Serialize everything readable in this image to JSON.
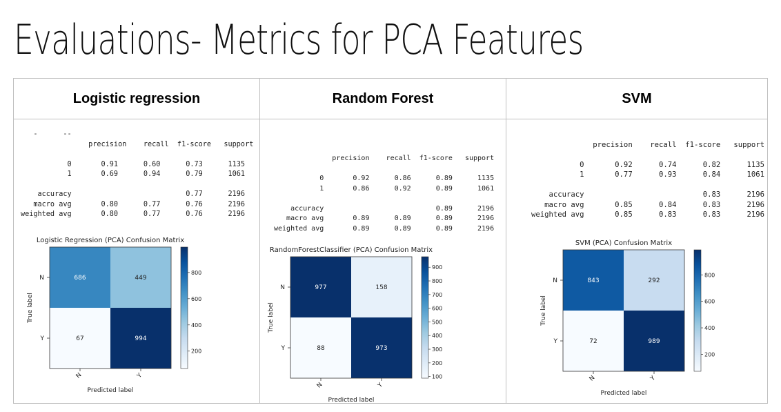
{
  "slide": {
    "title": "Evaluations- Metrics for PCA Features"
  },
  "columns": [
    {
      "header": "Logistic regression",
      "report_lines": [
        "   -      --",
        "                precision    recall  f1-score   support",
        "",
        "           0       0.91      0.60      0.73      1135",
        "           1       0.69      0.94      0.79      1061",
        "",
        "    accuracy                           0.77      2196",
        "   macro avg       0.80      0.77      0.76      2196",
        "weighted avg       0.80      0.77      0.76      2196"
      ],
      "matrix": {
        "title": "Logistic Regression (PCA) Confusion Matrix",
        "xlabel": "Predicted label",
        "ylabel": "True label",
        "row_labels": [
          "N",
          "Y"
        ],
        "col_labels": [
          "N",
          "Y"
        ],
        "values": [
          [
            686,
            449
          ],
          [
            67,
            994
          ]
        ],
        "colorbar_ticks": [
          200,
          400,
          600,
          800
        ],
        "vmin": 67,
        "vmax": 994
      }
    },
    {
      "header": "Random Forest",
      "report_lines": [
        "",
        "",
        "              precision    recall  f1-score   support",
        "",
        "           0       0.92      0.86      0.89      1135",
        "           1       0.86      0.92      0.89      1061",
        "",
        "    accuracy                           0.89      2196",
        "   macro avg       0.89      0.89      0.89      2196",
        "weighted avg       0.89      0.89      0.89      2196"
      ],
      "matrix": {
        "title": "RandomForestClassifier (PCA) Confusion Matrix",
        "xlabel": "Predicted label",
        "ylabel": "True label",
        "row_labels": [
          "N",
          "Y"
        ],
        "col_labels": [
          "N",
          "Y"
        ],
        "values": [
          [
            977,
            158
          ],
          [
            88,
            973
          ]
        ],
        "colorbar_ticks": [
          100,
          200,
          300,
          400,
          500,
          600,
          700,
          800,
          900
        ],
        "vmin": 88,
        "vmax": 977
      }
    },
    {
      "header": "SVM",
      "report_lines": [
        "",
        "              precision    recall  f1-score   support",
        "",
        "           0       0.92      0.74      0.82      1135",
        "           1       0.77      0.93      0.84      1061",
        "",
        "    accuracy                           0.83      2196",
        "   macro avg       0.85      0.84      0.83      2196",
        "weighted avg       0.85      0.83      0.83      2196"
      ],
      "matrix": {
        "title": "SVM (PCA) Confusion Matrix",
        "xlabel": "Predicted label",
        "ylabel": "True label",
        "row_labels": [
          "N",
          "Y"
        ],
        "col_labels": [
          "N",
          "Y"
        ],
        "values": [
          [
            843,
            292
          ],
          [
            72,
            989
          ]
        ],
        "colorbar_ticks": [
          200,
          400,
          600,
          800
        ],
        "vmin": 72,
        "vmax": 989
      }
    }
  ]
}
